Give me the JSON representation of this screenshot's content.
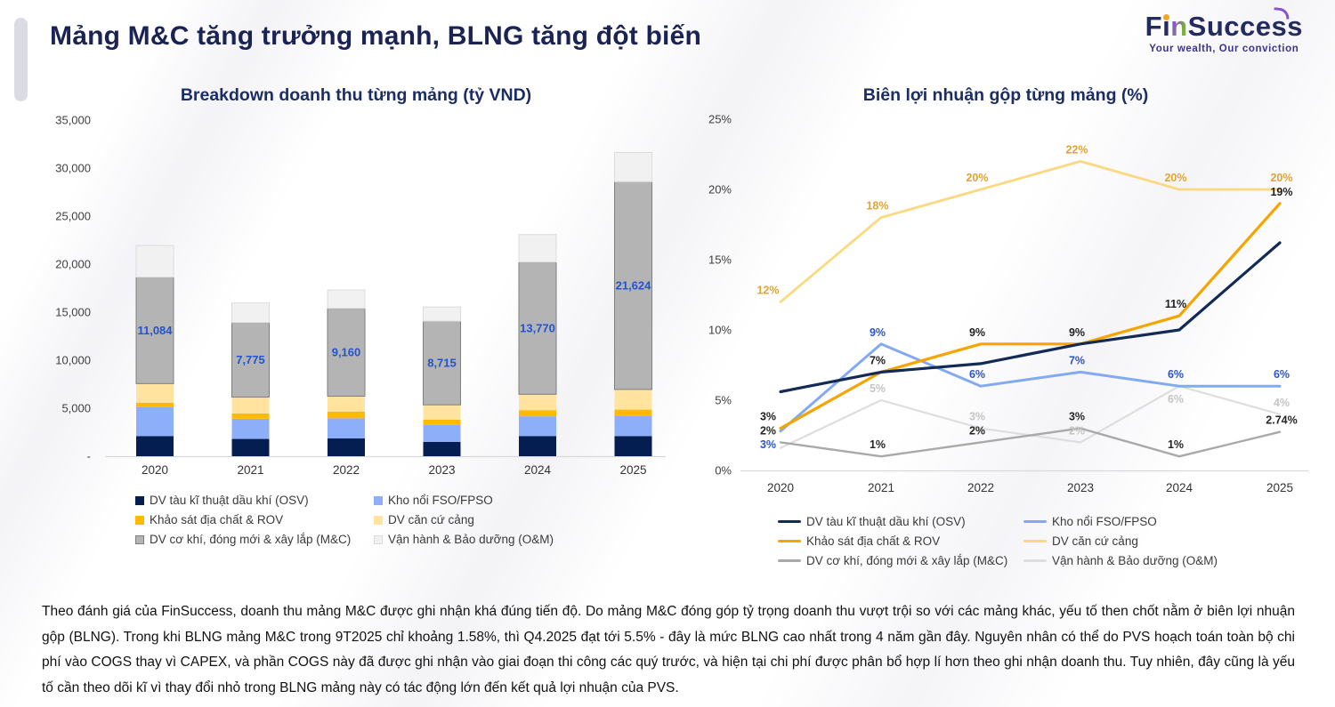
{
  "page": {
    "title": "Mảng M&C tăng trưởng mạnh, BLNG tăng đột biến",
    "logo": {
      "f": "F",
      "i": "i",
      "n": "n",
      "mid": "Succe",
      "s_styled": "s",
      "end": "s",
      "tagline": "Your wealth, Our conviction"
    },
    "analysis": "Theo đánh giá của FinSuccess, doanh thu mảng M&C được ghi nhận khá đúng tiến độ. Do mảng M&C đóng góp tỷ trọng doanh thu vượt trội so với các mảng khác, yếu tố then chốt nằm ở biên lợi nhuận gộp (BLNG). Trong khi BLNG mảng M&C trong 9T2025 chỉ khoảng 1.58%, thì Q4.2025 đạt tới 5.5% - đây là mức BLNG cao nhất trong 4 năm gần đây.  Nguyên nhân có thể do PVS hoạch toán toàn bộ chi phí vào COGS thay vì CAPEX, và phần COGS này đã được ghi nhận vào giai đoạn thi công các quý trước, và hiện tại chi phí được phân bổ hợp lí hơn theo ghi nhận doanh thu. Tuy nhiên, đây cũng là yếu tố cần theo dõi kĩ vì thay đổi nhỏ trong BLNG mảng này có tác động lớn đến kết quả lợi nhuận của PVS."
  },
  "chart_data": [
    {
      "type": "bar",
      "stacked": true,
      "title": "Breakdown doanh thu từng mảng (tỷ VND)",
      "categories": [
        "2020",
        "2021",
        "2022",
        "2023",
        "2024",
        "2025"
      ],
      "ylim": [
        0,
        35000
      ],
      "yticks": [
        "35,000",
        "30,000",
        "25,000",
        "20,000",
        "15,000",
        "10,000",
        "5,000",
        "-"
      ],
      "grid": false,
      "legend_position": "bottom",
      "series": [
        {
          "name": "DV tàu kĩ thuật dầu khí (OSV)",
          "color": "#041E52",
          "values": [
            2100,
            1800,
            1850,
            1500,
            2100,
            2100
          ]
        },
        {
          "name": "Kho nổi FSO/FPSO",
          "color": "#8DAFFA",
          "values": [
            3000,
            2100,
            2100,
            1750,
            2050,
            2100
          ]
        },
        {
          "name": "Khảo sát địa chất & ROV",
          "color": "#FFB900",
          "values": [
            460,
            550,
            700,
            550,
            650,
            650
          ]
        },
        {
          "name": "DV căn cứ cảng",
          "color": "#FFE39E",
          "values": [
            2000,
            1700,
            1600,
            1550,
            1650,
            2100
          ]
        },
        {
          "name": "DV cơ khí, đóng mới & xây lắp (M&C)",
          "color": "#B4B4B4",
          "border": "#7F7F7F",
          "values": [
            11084,
            7775,
            9160,
            8715,
            13770,
            21624
          ],
          "labels": [
            "11,084",
            "7,775",
            "9,160",
            "8,715",
            "13,770",
            "21,624"
          ]
        },
        {
          "name": "Vận hành & Bảo dưỡng (O&M)",
          "color": "#F1F1F1",
          "border": "#DCDCDC",
          "values": [
            3300,
            2030,
            1900,
            1480,
            2860,
            3050
          ]
        }
      ]
    },
    {
      "type": "line",
      "title": "Biên lợi nhuận gộp từng mảng (%)",
      "categories": [
        "2020",
        "2021",
        "2022",
        "2023",
        "2024",
        "2025"
      ],
      "ylim": [
        0,
        25
      ],
      "yticks": [
        "25%",
        "20%",
        "15%",
        "10%",
        "5%",
        "0%"
      ],
      "grid": false,
      "legend_position": "bottom",
      "series": [
        {
          "name": "DV tàu kĩ thuật dầu khí (OSV)",
          "color": "#122A56",
          "label_color": "#1F1F1F",
          "values": [
            5.6,
            7,
            7.6,
            9,
            10,
            16.2
          ],
          "labels": [
            null,
            "7%",
            null,
            "9%",
            null,
            null
          ]
        },
        {
          "name": "Kho nổi FSO/FPSO",
          "color": "#82AAF2",
          "label_color": "#2B55C8",
          "values": [
            2.8,
            9,
            6,
            7,
            6,
            6
          ],
          "labels": [
            "3%",
            "9%",
            "6%",
            "7%",
            "6%",
            "6%"
          ]
        },
        {
          "name": "Khảo sát địa chất & ROV",
          "color": "#F6A500",
          "label_color": "#1F1F1F",
          "values": [
            3,
            7,
            9,
            9,
            11,
            19
          ],
          "labels": [
            "3%",
            null,
            "9%",
            null,
            "11%",
            "19%"
          ]
        },
        {
          "name": "DV căn cứ cảng",
          "color": "#FBD981",
          "label_color": "#E0A42F",
          "values": [
            12,
            18,
            20,
            22,
            20,
            20
          ],
          "labels": [
            "12%",
            "18%",
            "20%",
            "22%",
            "20%",
            "20%"
          ]
        },
        {
          "name": "DV cơ khí, đóng mới & xây lắp (M&C)",
          "color": "#A9A9A9",
          "label_color": "#262626",
          "values": [
            2,
            1,
            2,
            3,
            1,
            2.74
          ],
          "labels": [
            "2%",
            "1%",
            "2%",
            "3%",
            "1%",
            "2.74%"
          ]
        },
        {
          "name": "Vận hành & Bảo dưỡng (O&M)",
          "color": "#DEDEDE",
          "label_color": "#C4C4C4",
          "values": [
            1.6,
            5,
            3,
            2,
            6,
            4
          ],
          "labels": [
            null,
            "5%",
            "3%",
            "2%",
            "6%",
            "4%"
          ]
        }
      ]
    }
  ]
}
